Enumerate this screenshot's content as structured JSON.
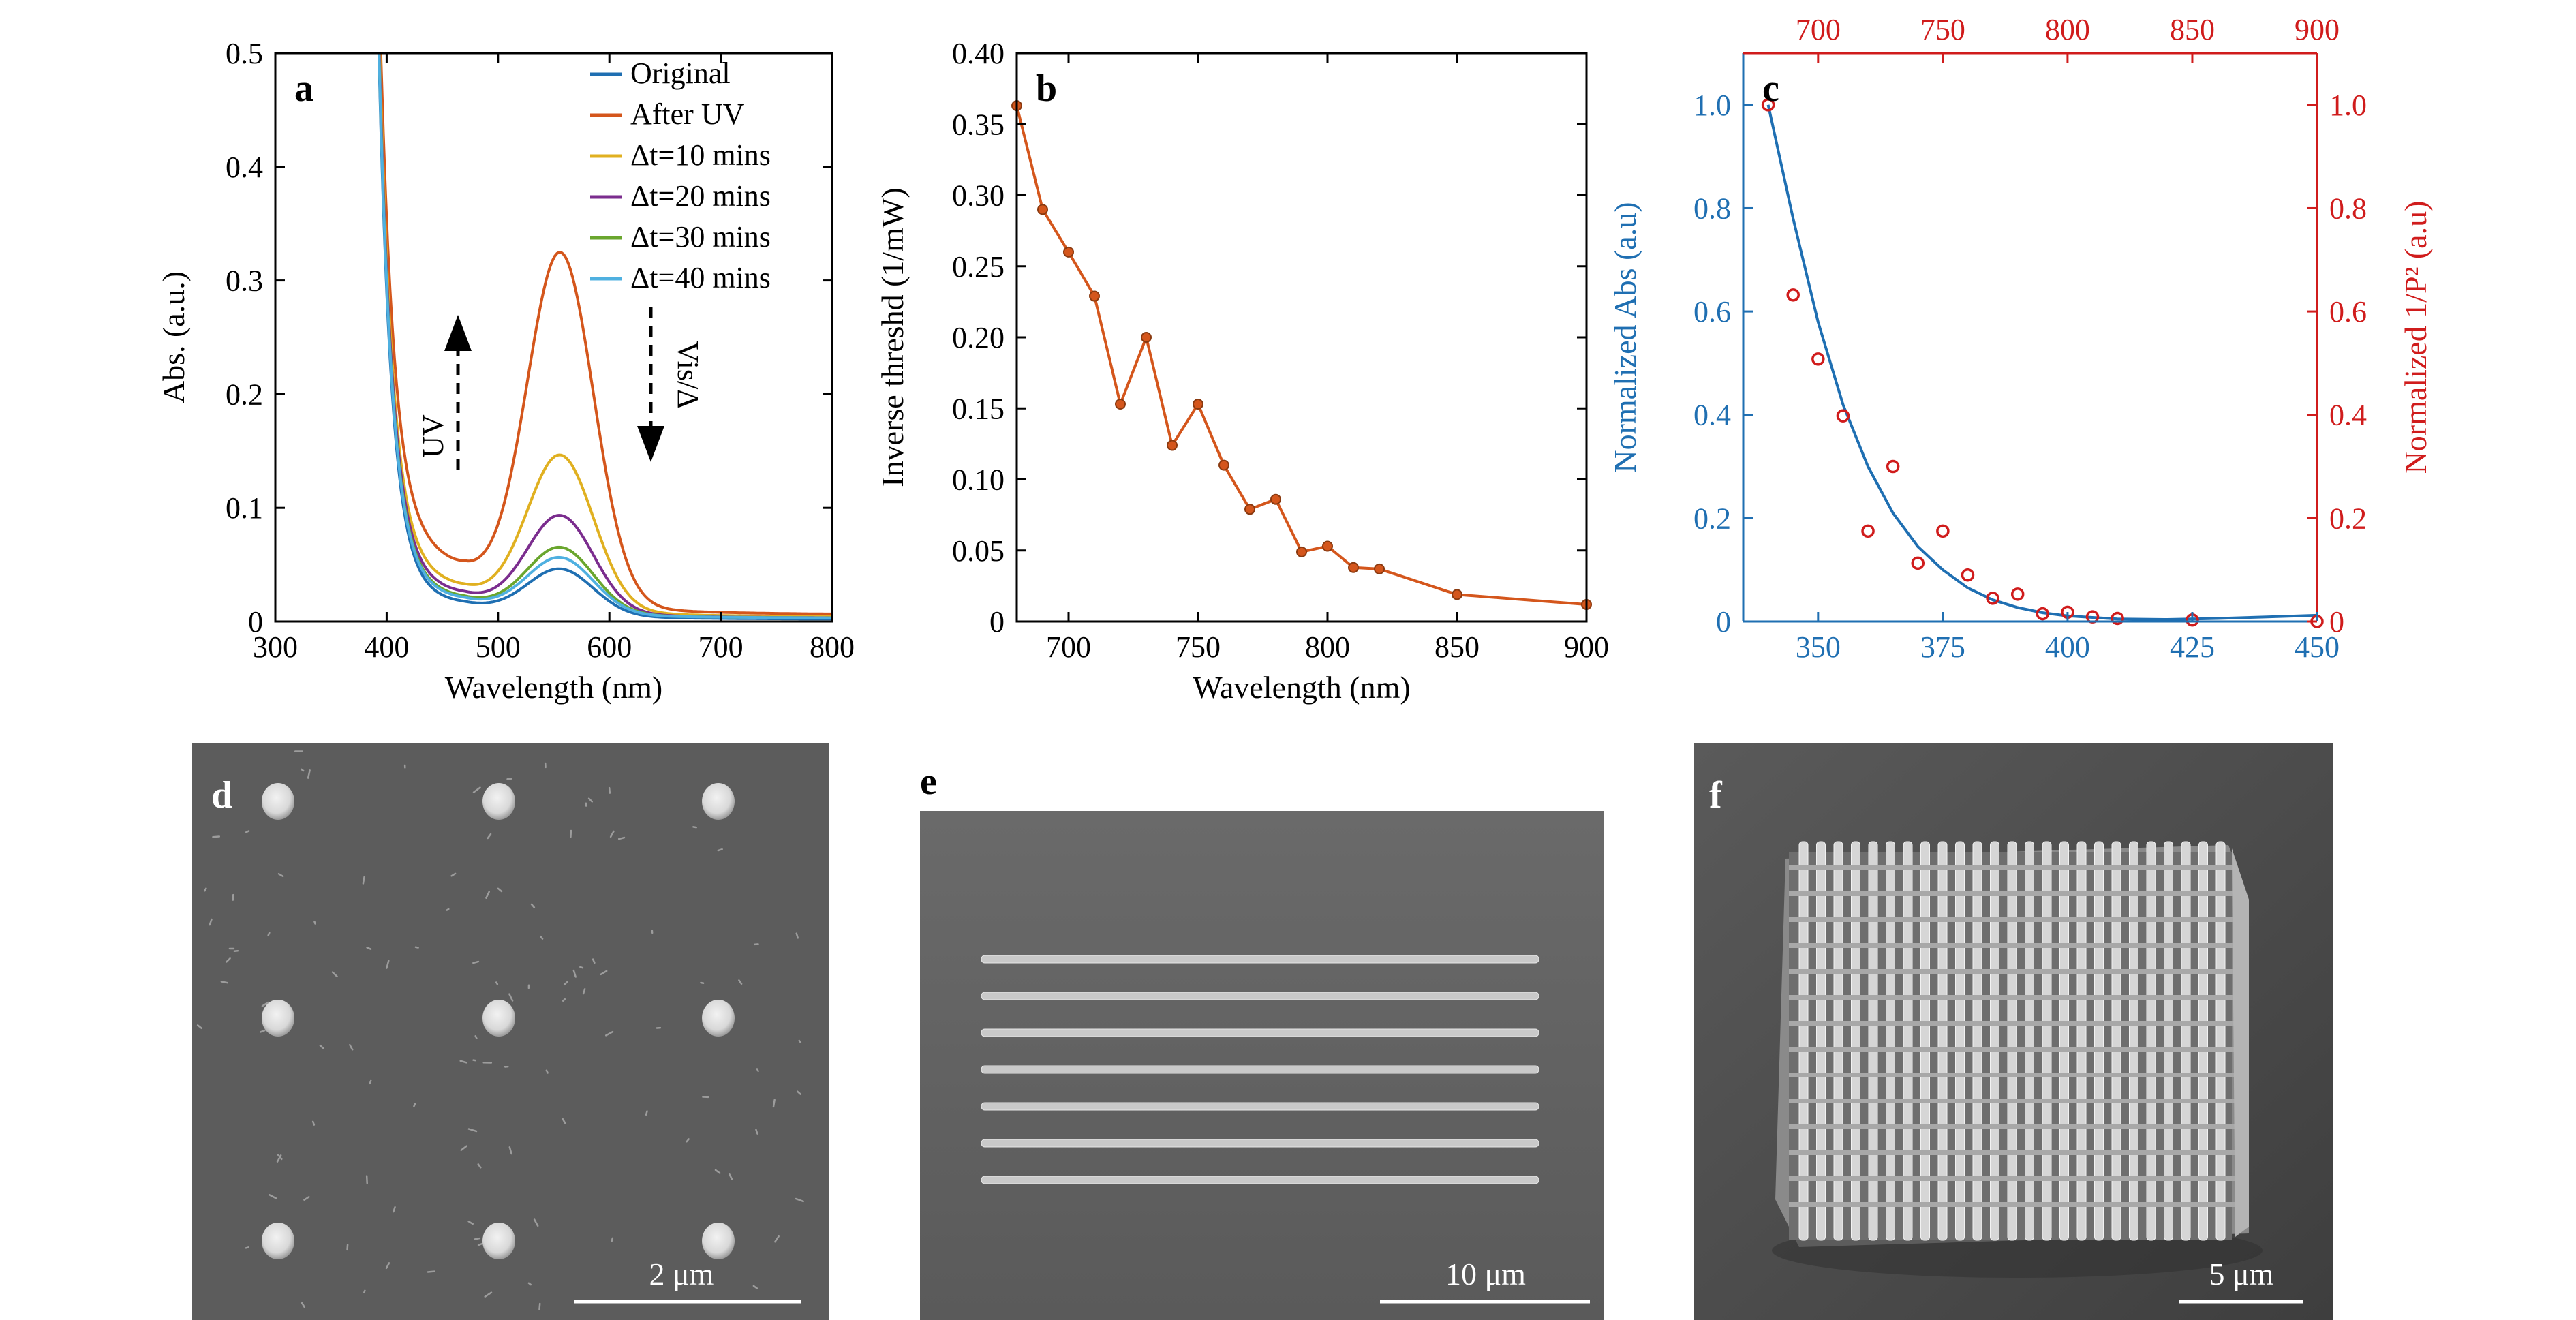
{
  "chart_data": [
    {
      "panel": "a",
      "type": "line",
      "xlabel": "Wavelength (nm)",
      "ylabel": "Abs. (a.u.)",
      "xlim": [
        300,
        800
      ],
      "ylim": [
        0,
        0.5
      ],
      "xticks": [
        300,
        400,
        500,
        600,
        700,
        800
      ],
      "yticks": [
        0,
        0.1,
        0.2,
        0.3,
        0.4,
        0.5
      ],
      "ytick_labels": [
        "0",
        "0.1",
        "0.2",
        "0.3",
        "0.4",
        "0.5"
      ],
      "legend": "top-right",
      "series": [
        {
          "name": "Original",
          "color": "#1f6fb2",
          "peak": 0.044,
          "min": 0.012,
          "tail": 0.002
        },
        {
          "name": "After UV",
          "color": "#d4561c",
          "peak": 0.318,
          "min": 0.035,
          "tail": 0.006
        },
        {
          "name": "Δt=10 mins",
          "color": "#e0b020",
          "peak": 0.142,
          "min": 0.022,
          "tail": 0.004
        },
        {
          "name": "Δt=20 mins",
          "color": "#7b2d8e",
          "peak": 0.09,
          "min": 0.018,
          "tail": 0.003
        },
        {
          "name": "Δt=30 mins",
          "color": "#6aa62e",
          "peak": 0.062,
          "min": 0.015,
          "tail": 0.003
        },
        {
          "name": "Δt=40 mins",
          "color": "#4fb0e0",
          "peak": 0.053,
          "min": 0.014,
          "tail": 0.003
        }
      ],
      "annotations": [
        "UV",
        "Vis/Δ"
      ]
    },
    {
      "panel": "b",
      "type": "line",
      "xlabel": "Wavelength (nm)",
      "ylabel": "Inverse threshd (1/mW)",
      "xlim": [
        680,
        900
      ],
      "ylim": [
        0,
        0.4
      ],
      "xticks": [
        700,
        750,
        800,
        850,
        900
      ],
      "yticks": [
        0,
        0.05,
        0.1,
        0.15,
        0.2,
        0.25,
        0.3,
        0.35,
        0.4
      ],
      "ytick_labels": [
        "0",
        "0.05",
        "0.10",
        "0.15",
        "0.20",
        "0.25",
        "0.30",
        "0.35",
        "0.40"
      ],
      "color": "#d4561c",
      "x": [
        680,
        690,
        700,
        710,
        720,
        730,
        740,
        750,
        760,
        770,
        780,
        790,
        800,
        810,
        820,
        850,
        900
      ],
      "y": [
        0.363,
        0.29,
        0.26,
        0.229,
        0.153,
        0.2,
        0.124,
        0.153,
        0.11,
        0.079,
        0.086,
        0.049,
        0.053,
        0.038,
        0.037,
        0.019,
        0.012
      ]
    },
    {
      "panel": "c",
      "type": "scatter",
      "xlabel_left": "Normalized Abs (a.u)",
      "ylabel_right": "Normalized 1/P² (a.u)",
      "bottom_xlim": [
        335,
        450
      ],
      "bottom_xticks": [
        350,
        375,
        400,
        425,
        450
      ],
      "top_xlim": [
        670,
        900
      ],
      "top_xticks": [
        700,
        750,
        800,
        850,
        900
      ],
      "ylim": [
        0,
        1.1
      ],
      "yticks": [
        0,
        0.2,
        0.4,
        0.6,
        0.8,
        1.0
      ],
      "ytick_labels_left": [
        "0",
        "0.2",
        "0.4",
        "0.6",
        "0.8",
        "1.0"
      ],
      "ytick_labels_right": [
        "0",
        "0.2",
        "0.4",
        "0.6",
        "0.8",
        "1.0"
      ],
      "left_color": "#1f6fb2",
      "right_color": "#d01c1c",
      "abs_curve": {
        "x": [
          340,
          345,
          350,
          355,
          360,
          365,
          370,
          375,
          380,
          385,
          390,
          395,
          400,
          410,
          420,
          430,
          440,
          450
        ],
        "y": [
          1.0,
          0.78,
          0.58,
          0.42,
          0.3,
          0.21,
          0.145,
          0.1,
          0.065,
          0.042,
          0.027,
          0.017,
          0.011,
          0.005,
          0.004,
          0.006,
          0.009,
          0.012
        ]
      },
      "inv_p2_points": {
        "x": [
          340,
          345,
          350,
          355,
          360,
          365,
          370,
          375,
          380,
          385,
          390,
          395,
          400,
          405,
          410,
          425,
          450
        ],
        "y": [
          1.0,
          0.632,
          0.508,
          0.398,
          0.175,
          0.3,
          0.113,
          0.175,
          0.09,
          0.045,
          0.053,
          0.015,
          0.018,
          0.009,
          0.006,
          0.003,
          0.0
        ]
      }
    }
  ],
  "panels": {
    "a": "a",
    "b": "b",
    "c": "c",
    "d": "d",
    "e": "e",
    "f": "f"
  },
  "sem": {
    "d": {
      "scale_label": "2 μm"
    },
    "e": {
      "scale_label": "10 μm"
    },
    "f": {
      "scale_label": "5 μm"
    }
  },
  "colors": {
    "axis": "#000000",
    "sem_background": "#5c5c5c"
  }
}
